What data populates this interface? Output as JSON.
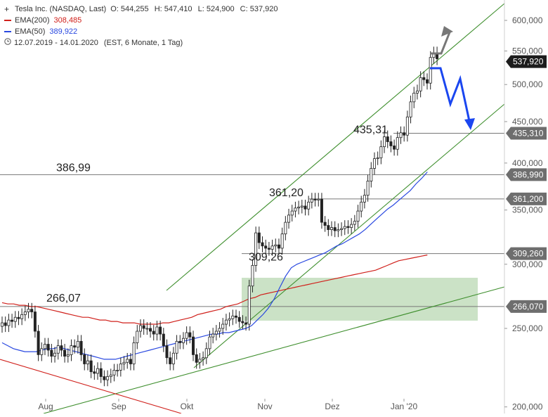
{
  "legend": {
    "title": "Tesla Inc. (NASDAQ, Last)",
    "ohlc": [
      "O: 544,255",
      "H: 547,410",
      "L: 524,900",
      "C: 537,920"
    ],
    "ema200_label": "EMA(200)",
    "ema200_value": "308,485",
    "ema50_label": "EMA(50)",
    "ema50_value": "389,922",
    "period": "12.07.2019 - 14.01.2020",
    "period_info": "(EST, 6 Monate, 1 Tag)"
  },
  "colors": {
    "ema200": "#d0201b",
    "ema50": "#2948e0",
    "channel": "#3f8f2e",
    "zone": "#c5dfc0",
    "forecast_up": "#777777",
    "forecast_down": "#1a46f0",
    "level_line": "#777777",
    "last_price_tag": "#1c1c1c",
    "level_tag": "#6e6e6e"
  },
  "chart_data": {
    "type": "candlestick",
    "scale": "log",
    "ylim": [
      200,
      630
    ],
    "x_ticks": [
      "Aug",
      "Sep",
      "Okt",
      "Nov",
      "Dez",
      "Jan '20"
    ],
    "y_ticks": [
      "600,000",
      "550,000",
      "500,000",
      "450,000",
      "400,000",
      "350,000",
      "300,000",
      "250,000",
      "200,000"
    ],
    "y_tick_values": [
      600,
      550,
      500,
      450,
      400,
      350,
      300,
      250,
      200
    ],
    "last_price": {
      "value": 537.92,
      "label": "537,920"
    },
    "levels": [
      {
        "value": 435.31,
        "axis_label": "435,310",
        "chart_label": "435,31"
      },
      {
        "value": 386.99,
        "axis_label": "386,990",
        "chart_label": "386,99"
      },
      {
        "value": 361.2,
        "axis_label": "361,200",
        "chart_label": "361,20"
      },
      {
        "value": 309.26,
        "axis_label": "309,260",
        "chart_label": "309,26"
      },
      {
        "value": 266.07,
        "axis_label": "266,070",
        "chart_label": "266,07"
      }
    ],
    "closes": [
      254,
      252,
      256,
      255,
      258,
      257,
      260,
      262,
      264,
      262,
      248,
      232,
      236,
      239,
      235,
      231,
      233,
      238,
      235,
      231,
      232,
      238,
      237,
      241,
      232,
      226,
      228,
      221,
      220,
      223,
      218,
      216,
      218,
      219,
      222,
      222,
      226,
      227,
      229,
      226,
      240,
      248,
      252,
      250,
      250,
      248,
      246,
      251,
      246,
      238,
      230,
      226,
      233,
      241,
      240,
      243,
      247,
      244,
      232,
      227,
      229,
      230,
      236,
      244,
      246,
      248,
      250,
      253,
      256,
      257,
      259,
      258,
      255,
      254,
      253,
      282,
      299,
      328,
      319,
      316,
      314,
      313,
      316,
      317,
      314,
      327,
      338,
      345,
      349,
      352,
      353,
      354,
      351,
      358,
      361,
      360,
      361,
      338,
      335,
      331,
      333,
      330,
      331,
      332,
      334,
      333,
      336,
      339,
      349,
      358,
      365,
      380,
      394,
      405,
      406,
      419,
      431,
      425,
      420,
      416,
      430,
      436,
      433,
      456,
      476,
      488,
      491,
      510,
      507,
      502,
      540,
      547,
      538
    ],
    "ema200": [
      269,
      268,
      268,
      267,
      267,
      266,
      266,
      265,
      264,
      263,
      262,
      261,
      260,
      259,
      258,
      258,
      257,
      256,
      256,
      255,
      255,
      254,
      254,
      254,
      253,
      253,
      253,
      253,
      254,
      254,
      255,
      256,
      257,
      258,
      260,
      261,
      262,
      263,
      264,
      266,
      267,
      268,
      270,
      272,
      273,
      275,
      276,
      277,
      278,
      279,
      280,
      281,
      282,
      283,
      284,
      285,
      286,
      287,
      288,
      289,
      290,
      291,
      292,
      293,
      294,
      295,
      297,
      299,
      301,
      303,
      304,
      305,
      306,
      307,
      308
    ],
    "ema50": [
      240,
      238,
      236,
      235,
      234,
      234,
      234,
      235,
      236,
      236,
      237,
      236,
      235,
      234,
      233,
      232,
      231,
      230,
      229,
      229,
      229,
      230,
      231,
      232,
      233,
      234,
      235,
      236,
      237,
      238,
      239,
      240,
      241,
      242,
      243,
      244,
      245,
      246,
      246,
      247,
      247,
      248,
      249,
      250,
      252,
      256,
      260,
      265,
      272,
      281,
      290,
      297,
      300,
      302,
      304,
      306,
      308,
      310,
      313,
      316,
      318,
      321,
      324,
      327,
      331,
      336,
      341,
      346,
      351,
      355,
      360,
      365,
      370,
      377,
      383,
      390
    ]
  }
}
